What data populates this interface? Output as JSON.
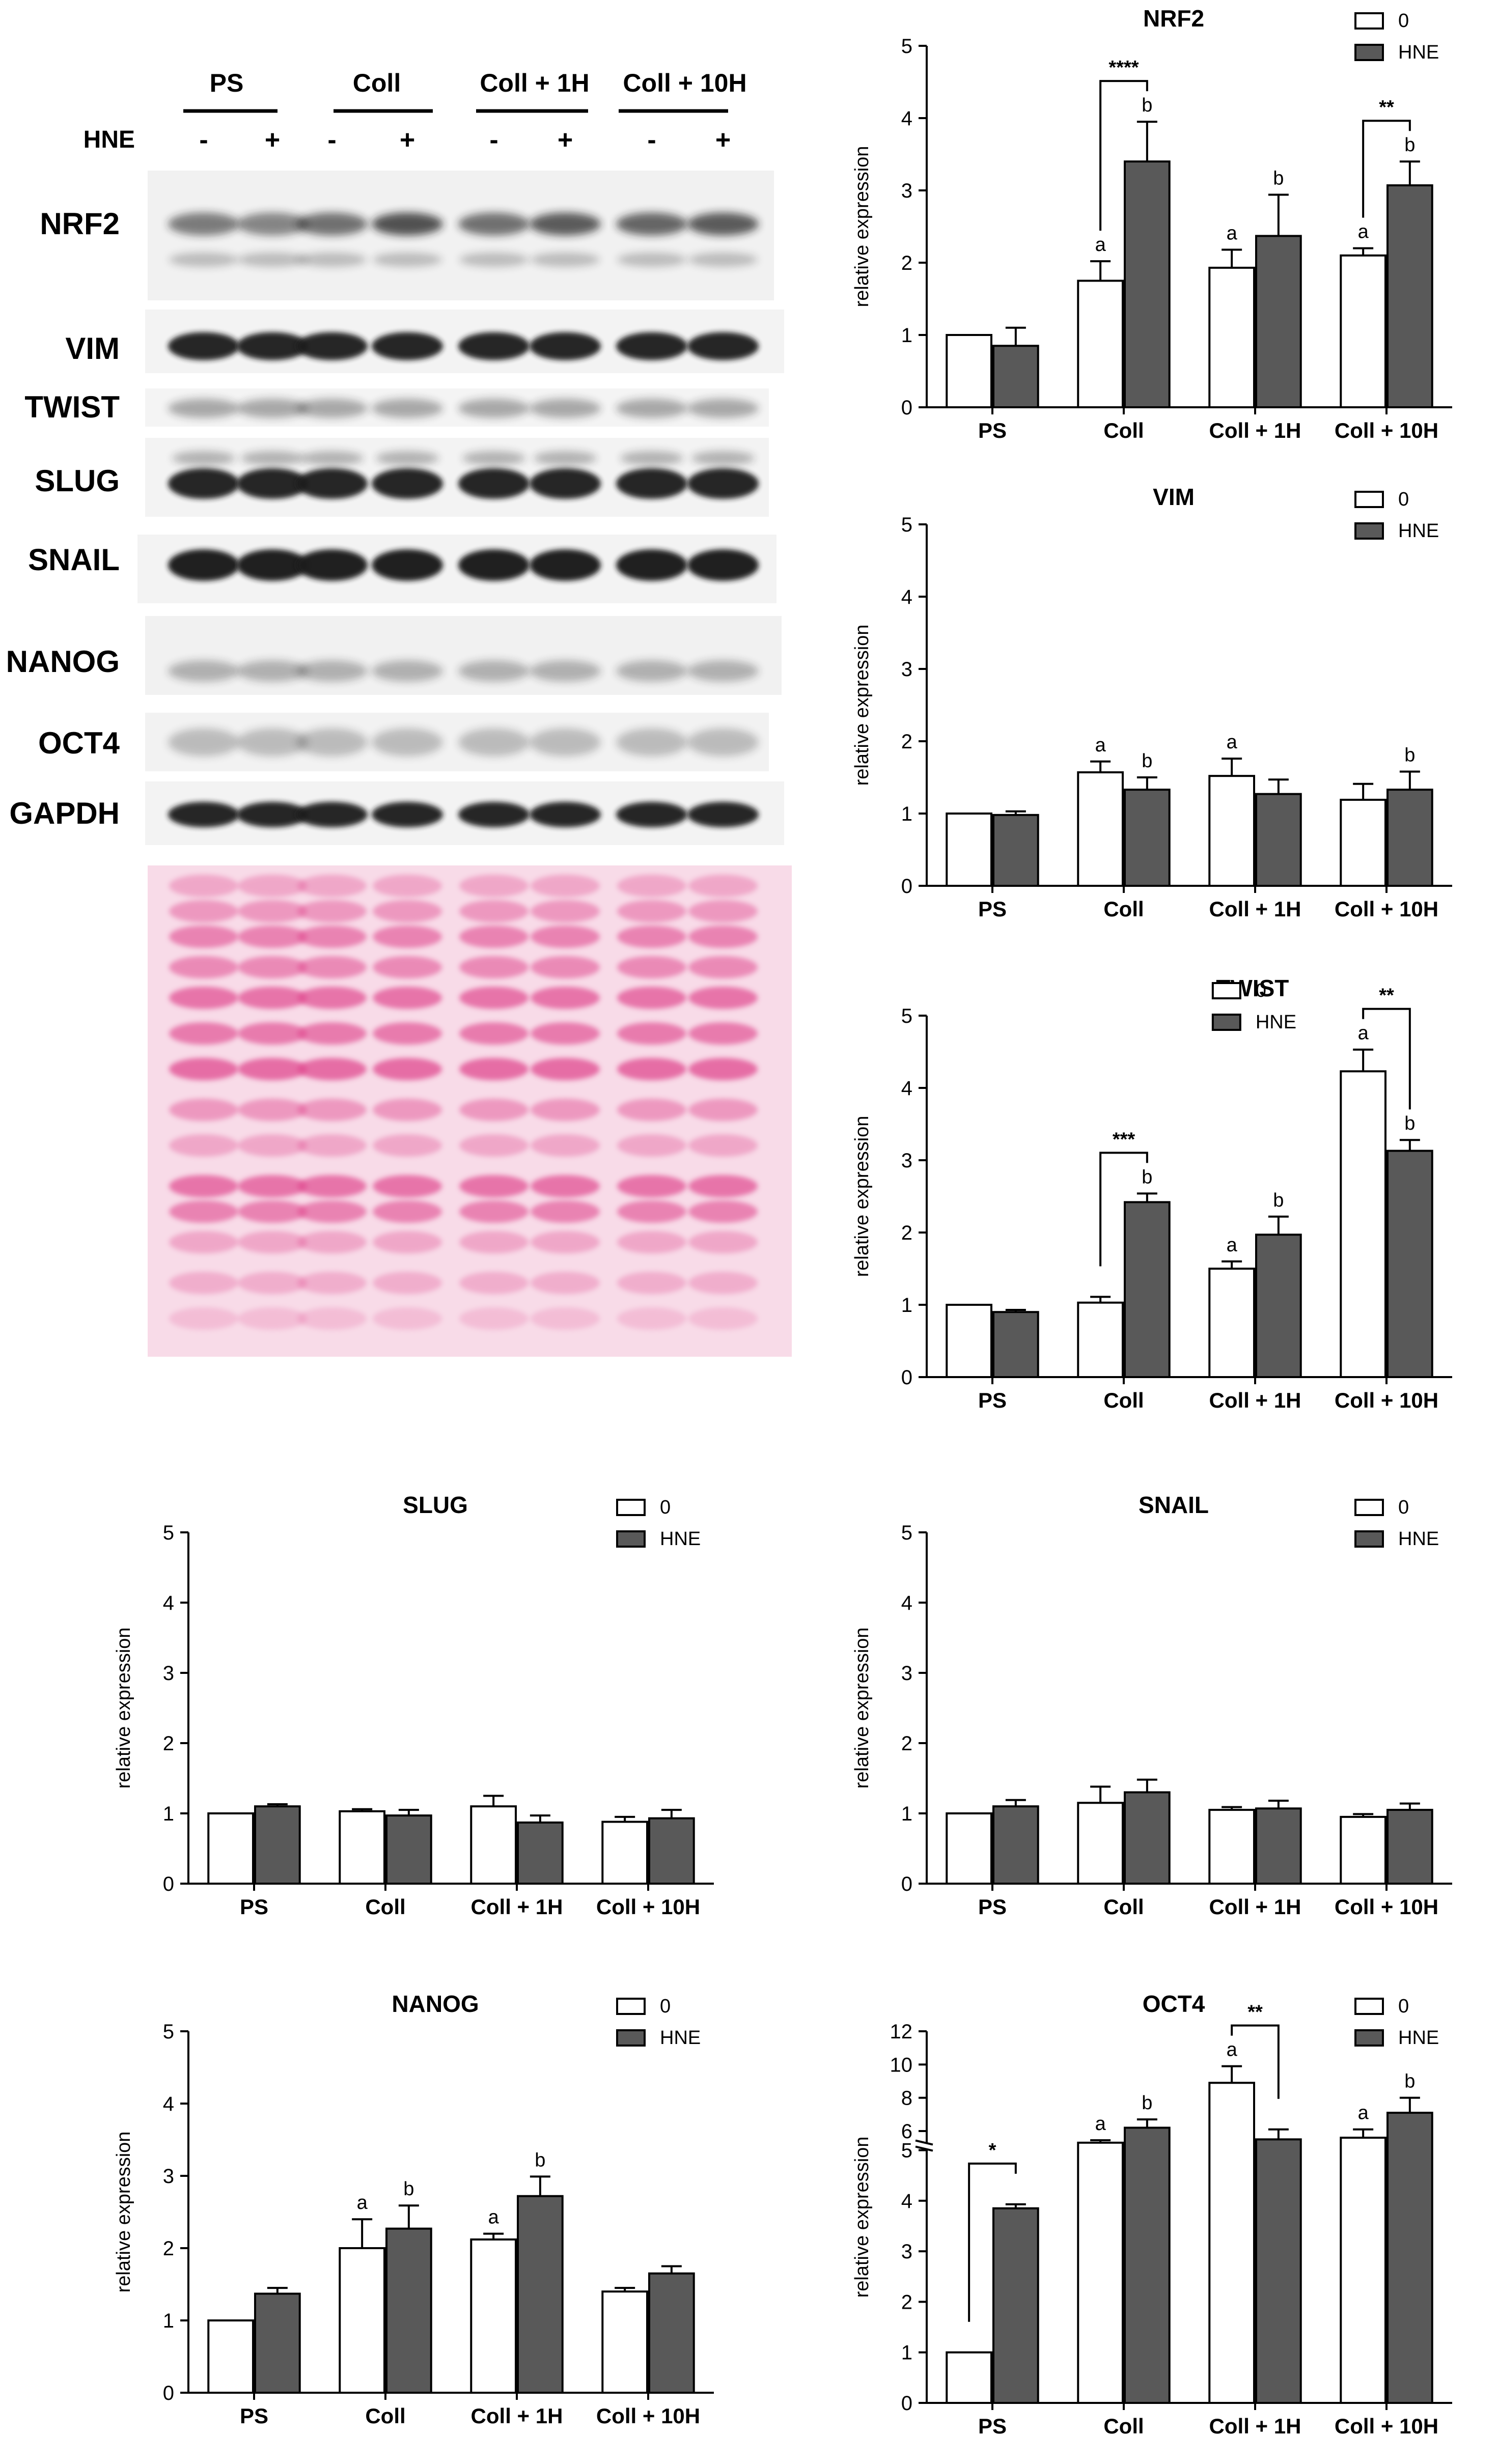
{
  "colors": {
    "control_bar": "#ffffff",
    "hne_bar": "#595959",
    "stain": "#e0498f"
  },
  "blot": {
    "group_labels": [
      "PS",
      "Coll",
      "Coll + 1H",
      "Coll + 10H"
    ],
    "treatment_label": "HNE",
    "lane_signs": [
      "-",
      "+",
      "-",
      "+",
      "-",
      "+",
      "-",
      "+"
    ],
    "proteins": [
      "NRF2",
      "VIM",
      "TWIST",
      "SLUG",
      "SNAIL",
      "NANOG",
      "OCT4",
      "GAPDH"
    ]
  },
  "chart_data": [
    {
      "type": "bar",
      "title": "NRF2",
      "ylabel": "relative expression",
      "categories": [
        "PS",
        "Coll",
        "Coll + 1H",
        "Coll + 10H"
      ],
      "ylim": [
        0,
        5
      ],
      "yticks": [
        "0",
        "1",
        "2",
        "3",
        "4",
        "5"
      ],
      "legend": [
        "0",
        "HNE"
      ],
      "legend_position": "top-right",
      "series": [
        {
          "name": "0",
          "values": [
            1.0,
            1.75,
            1.93,
            2.1
          ],
          "errors": [
            0,
            0.27,
            0.25,
            0.1
          ],
          "letters": [
            "",
            "a",
            "a",
            "a"
          ]
        },
        {
          "name": "HNE",
          "values": [
            0.85,
            3.4,
            2.37,
            3.07
          ],
          "errors": [
            0.25,
            0.55,
            0.57,
            0.33
          ],
          "letters": [
            "",
            "b",
            "b",
            "b"
          ]
        }
      ],
      "significance": [
        {
          "category": 1,
          "label": "****"
        },
        {
          "category": 3,
          "label": "**"
        }
      ]
    },
    {
      "type": "bar",
      "title": "VIM",
      "ylabel": "relative expression",
      "categories": [
        "PS",
        "Coll",
        "Coll + 1H",
        "Coll + 10H"
      ],
      "ylim": [
        0,
        5
      ],
      "yticks": [
        "0",
        "1",
        "2",
        "3",
        "4",
        "5"
      ],
      "legend": [
        "0",
        "HNE"
      ],
      "legend_position": "top-right",
      "series": [
        {
          "name": "0",
          "values": [
            1.0,
            1.57,
            1.52,
            1.19
          ],
          "errors": [
            0,
            0.15,
            0.24,
            0.22
          ],
          "letters": [
            "",
            "a",
            "a",
            ""
          ]
        },
        {
          "name": "HNE",
          "values": [
            0.98,
            1.33,
            1.27,
            1.33
          ],
          "errors": [
            0.05,
            0.17,
            0.2,
            0.25
          ],
          "letters": [
            "",
            "b",
            "",
            "b"
          ]
        }
      ],
      "significance": []
    },
    {
      "type": "bar",
      "title": "TWIST",
      "ylabel": "relative expression",
      "categories": [
        "PS",
        "Coll",
        "Coll + 1H",
        "Coll + 10H"
      ],
      "ylim": [
        0,
        5
      ],
      "yticks": [
        "0",
        "1",
        "2",
        "3",
        "4",
        "5"
      ],
      "legend": [
        "0",
        "HNE"
      ],
      "legend_position": "top-center",
      "series": [
        {
          "name": "0",
          "values": [
            1.0,
            1.03,
            1.5,
            4.23
          ],
          "errors": [
            0,
            0.08,
            0.1,
            0.3
          ],
          "letters": [
            "",
            "",
            "a",
            "a"
          ]
        },
        {
          "name": "HNE",
          "values": [
            0.9,
            2.42,
            1.97,
            3.13
          ],
          "errors": [
            0.03,
            0.12,
            0.25,
            0.15
          ],
          "letters": [
            "",
            "b",
            "b",
            "b"
          ]
        }
      ],
      "significance": [
        {
          "category": 1,
          "label": "***"
        },
        {
          "category": 3,
          "label": "**"
        }
      ]
    },
    {
      "type": "bar",
      "title": "SLUG",
      "ylabel": "relative expression",
      "categories": [
        "PS",
        "Coll",
        "Coll + 1H",
        "Coll + 10H"
      ],
      "ylim": [
        0,
        5
      ],
      "yticks": [
        "0",
        "1",
        "2",
        "3",
        "4",
        "5"
      ],
      "legend": [
        "0",
        "HNE"
      ],
      "legend_position": "top-right",
      "series": [
        {
          "name": "0",
          "values": [
            1.0,
            1.03,
            1.1,
            0.88
          ],
          "errors": [
            0,
            0.03,
            0.15,
            0.07
          ],
          "letters": [
            "",
            "",
            "",
            ""
          ]
        },
        {
          "name": "HNE",
          "values": [
            1.1,
            0.97,
            0.87,
            0.93
          ],
          "errors": [
            0.03,
            0.08,
            0.1,
            0.12
          ],
          "letters": [
            "",
            "",
            "",
            ""
          ]
        }
      ],
      "significance": []
    },
    {
      "type": "bar",
      "title": "SNAIL",
      "ylabel": "relative expression",
      "categories": [
        "PS",
        "Coll",
        "Coll + 1H",
        "Coll + 10H"
      ],
      "ylim": [
        0,
        5
      ],
      "yticks": [
        "0",
        "1",
        "2",
        "3",
        "4",
        "5"
      ],
      "legend": [
        "0",
        "HNE"
      ],
      "legend_position": "top-right",
      "series": [
        {
          "name": "0",
          "values": [
            1.0,
            1.15,
            1.05,
            0.95
          ],
          "errors": [
            0,
            0.23,
            0.04,
            0.04
          ],
          "letters": [
            "",
            "",
            "",
            ""
          ]
        },
        {
          "name": "HNE",
          "values": [
            1.1,
            1.3,
            1.07,
            1.05
          ],
          "errors": [
            0.09,
            0.18,
            0.11,
            0.09
          ],
          "letters": [
            "",
            "",
            "",
            ""
          ]
        }
      ],
      "significance": []
    },
    {
      "type": "bar",
      "title": "NANOG",
      "ylabel": "relative expression",
      "categories": [
        "PS",
        "Coll",
        "Coll + 1H",
        "Coll + 10H"
      ],
      "ylim": [
        0,
        5
      ],
      "yticks": [
        "0",
        "1",
        "2",
        "3",
        "4",
        "5"
      ],
      "legend": [
        "0",
        "HNE"
      ],
      "legend_position": "top-right",
      "series": [
        {
          "name": "0",
          "values": [
            1.0,
            2.0,
            2.12,
            1.4
          ],
          "errors": [
            0,
            0.4,
            0.08,
            0.05
          ],
          "letters": [
            "",
            "a",
            "a",
            ""
          ]
        },
        {
          "name": "HNE",
          "values": [
            1.37,
            2.27,
            2.72,
            1.65
          ],
          "errors": [
            0.08,
            0.32,
            0.27,
            0.1
          ],
          "letters": [
            "",
            "b",
            "b",
            ""
          ]
        }
      ],
      "significance": []
    },
    {
      "type": "bar",
      "title": "OCT4",
      "ylabel": "relative expression",
      "categories": [
        "PS",
        "Coll",
        "Coll + 1H",
        "Coll + 10H"
      ],
      "ylim": [
        0,
        12
      ],
      "axis_break": [
        5,
        5
      ],
      "yticks": [
        "0",
        "1",
        "2",
        "3",
        "4",
        "5",
        "6",
        "8",
        "10",
        "12"
      ],
      "legend": [
        "0",
        "HNE"
      ],
      "legend_position": "top-right",
      "series": [
        {
          "name": "0",
          "values": [
            1.0,
            5.3,
            8.9,
            5.6
          ],
          "errors": [
            0,
            0.15,
            1.0,
            0.5
          ],
          "letters": [
            "",
            "a",
            "a",
            "a"
          ]
        },
        {
          "name": "HNE",
          "values": [
            3.85,
            6.2,
            5.5,
            7.1
          ],
          "errors": [
            0.08,
            0.5,
            0.6,
            0.9
          ],
          "letters": [
            "",
            "b",
            "",
            "b"
          ]
        }
      ],
      "significance": [
        {
          "category": 0,
          "label": "*"
        },
        {
          "category": 2,
          "label": "**"
        }
      ]
    }
  ]
}
